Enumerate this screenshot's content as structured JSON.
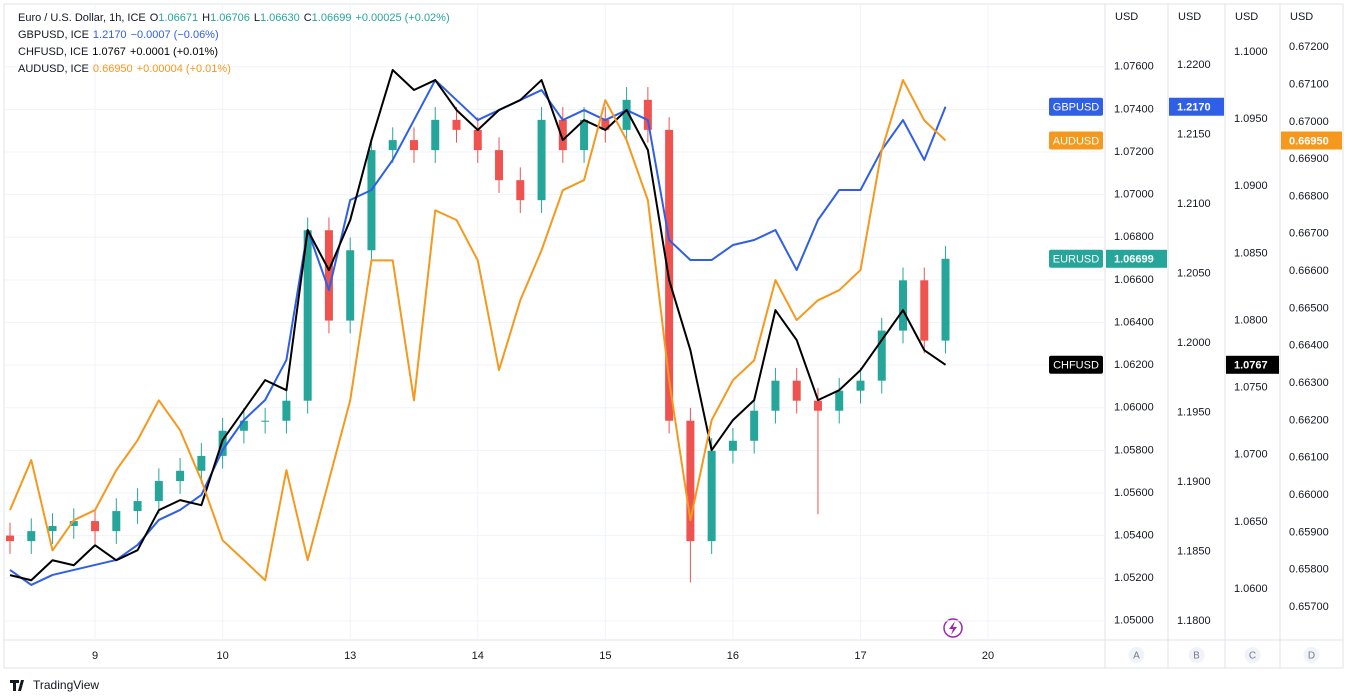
{
  "chart_data": {
    "type": "candlestick",
    "brand": "TradingView",
    "legend": [
      {
        "title": "Euro / U.S. Dollar, 1h, ICE",
        "ohlc": [
          {
            "label": "O",
            "value": "1.06671"
          },
          {
            "label": "H",
            "value": "1.06706"
          },
          {
            "label": "L",
            "value": "1.06630"
          },
          {
            "label": "C",
            "value": "1.06699"
          }
        ],
        "change": "+0.00025 (+0.02%)"
      },
      {
        "title": "GBPUSD, ICE",
        "value": "1.2170",
        "change": "−0.0007 (−0.06%)"
      },
      {
        "title": "CHFUSD, ICE",
        "value": "1.0767",
        "change": "+0.0001 (+0.01%)"
      },
      {
        "title": "AUDUSD, ICE",
        "value": "0.66950",
        "change": "+0.00004 (+0.01%)"
      }
    ],
    "grid": true,
    "xlim": [
      0,
      206
    ],
    "xticks": [
      {
        "value": 16,
        "label": "9"
      },
      {
        "value": 40,
        "label": "10"
      },
      {
        "value": 64,
        "label": "13"
      },
      {
        "value": 88,
        "label": "14"
      },
      {
        "value": 112,
        "label": "15"
      },
      {
        "value": 136,
        "label": "16"
      },
      {
        "value": 160,
        "label": "17"
      },
      {
        "value": 184,
        "label": "20"
      }
    ],
    "x": [
      0,
      4,
      8,
      12,
      16,
      20,
      24,
      28,
      32,
      36,
      40,
      44,
      48,
      52,
      56,
      60,
      64,
      68,
      72,
      76,
      80,
      84,
      88,
      92,
      96,
      100,
      104,
      108,
      112,
      116,
      120,
      124,
      128,
      132,
      136,
      140,
      144,
      148,
      152,
      156,
      160,
      164,
      168,
      172,
      176
    ],
    "axes": [
      {
        "letter": "A",
        "unit": "USD",
        "lim": [
          1.0491,
          1.0789
        ],
        "ticks": [
          {
            "value": 1.05,
            "label": "1.05000"
          },
          {
            "value": 1.052,
            "label": "1.05200"
          },
          {
            "value": 1.054,
            "label": "1.05400"
          },
          {
            "value": 1.056,
            "label": "1.05600"
          },
          {
            "value": 1.058,
            "label": "1.05800"
          },
          {
            "value": 1.06,
            "label": "1.06000"
          },
          {
            "value": 1.062,
            "label": "1.06200"
          },
          {
            "value": 1.064,
            "label": "1.06400"
          },
          {
            "value": 1.066,
            "label": "1.06600"
          },
          {
            "value": 1.068,
            "label": "1.06800"
          },
          {
            "value": 1.07,
            "label": "1.07000"
          },
          {
            "value": 1.072,
            "label": "1.07200"
          },
          {
            "value": 1.074,
            "label": "1.07400"
          },
          {
            "value": 1.076,
            "label": "1.07600"
          }
        ]
      },
      {
        "letter": "B",
        "unit": "USD",
        "lim": [
          1.17863,
          1.22432
        ],
        "ticks": [
          {
            "value": 1.18,
            "label": "1.1800"
          },
          {
            "value": 1.185,
            "label": "1.1850"
          },
          {
            "value": 1.19,
            "label": "1.1900"
          },
          {
            "value": 1.195,
            "label": "1.1950"
          },
          {
            "value": 1.2,
            "label": "1.2000"
          },
          {
            "value": 1.205,
            "label": "1.2050"
          },
          {
            "value": 1.21,
            "label": "1.2100"
          },
          {
            "value": 1.215,
            "label": "1.2150"
          },
          {
            "value": 1.22,
            "label": "1.2200"
          }
        ]
      },
      {
        "letter": "C",
        "unit": "USD",
        "lim": [
          1.0562,
          1.1035
        ],
        "ticks": [
          {
            "value": 1.06,
            "label": "1.0600"
          },
          {
            "value": 1.065,
            "label": "1.0650"
          },
          {
            "value": 1.07,
            "label": "1.0700"
          },
          {
            "value": 1.075,
            "label": "1.0750"
          },
          {
            "value": 1.08,
            "label": "1.0800"
          },
          {
            "value": 1.085,
            "label": "1.0850"
          },
          {
            "value": 1.09,
            "label": "1.0900"
          },
          {
            "value": 1.095,
            "label": "1.0950"
          },
          {
            "value": 1.1,
            "label": "1.1000"
          }
        ]
      },
      {
        "letter": "D",
        "unit": "USD",
        "lim": [
          0.65612,
          0.67313
        ],
        "ticks": [
          {
            "value": 0.657,
            "label": "0.65700"
          },
          {
            "value": 0.658,
            "label": "0.65800"
          },
          {
            "value": 0.659,
            "label": "0.65900"
          },
          {
            "value": 0.66,
            "label": "0.66000"
          },
          {
            "value": 0.661,
            "label": "0.66100"
          },
          {
            "value": 0.662,
            "label": "0.66200"
          },
          {
            "value": 0.663,
            "label": "0.66300"
          },
          {
            "value": 0.664,
            "label": "0.66400"
          },
          {
            "value": 0.665,
            "label": "0.66500"
          },
          {
            "value": 0.666,
            "label": "0.66600"
          },
          {
            "value": 0.667,
            "label": "0.66700"
          },
          {
            "value": 0.668,
            "label": "0.66800"
          },
          {
            "value": 0.669,
            "label": "0.66900"
          },
          {
            "value": 0.67,
            "label": "0.67000"
          },
          {
            "value": 0.671,
            "label": "0.67100"
          },
          {
            "value": 0.672,
            "label": "0.67200"
          }
        ]
      }
    ],
    "candles": {
      "name": "EURUSD",
      "axis": "A",
      "up_color": "#26a69a",
      "down_color": "#ef5350",
      "last_label": "1.06699",
      "open": [
        1.054,
        1.05374,
        1.05421,
        1.05445,
        1.05468,
        1.05421,
        1.05515,
        1.05562,
        1.05656,
        1.05704,
        1.05774,
        1.05892,
        1.05939,
        1.05939,
        1.06033,
        1.06833,
        1.06409,
        1.06739,
        1.07209,
        1.07256,
        1.07209,
        1.07351,
        1.07304,
        1.07209,
        1.07068,
        1.06974,
        1.07351,
        1.07209,
        1.07351,
        1.07304,
        1.07445,
        1.07304,
        1.05939,
        1.05374,
        1.05798,
        1.05845,
        1.05986,
        1.06127,
        1.06033,
        1.05986,
        1.0608,
        1.06127,
        1.06362,
        1.06598,
        1.06315
      ],
      "high": [
        1.0546,
        1.05481,
        1.05505,
        1.05528,
        1.05528,
        1.05575,
        1.05622,
        1.05716,
        1.05764,
        1.05834,
        1.05952,
        1.05999,
        1.05999,
        1.06093,
        1.06893,
        1.06893,
        1.06799,
        1.07269,
        1.07316,
        1.07316,
        1.07411,
        1.07411,
        1.07364,
        1.07269,
        1.07128,
        1.07411,
        1.07411,
        1.07411,
        1.07411,
        1.07505,
        1.07505,
        1.07364,
        1.05999,
        1.05858,
        1.05905,
        1.06046,
        1.06187,
        1.06187,
        1.06093,
        1.0614,
        1.06187,
        1.06422,
        1.06658,
        1.06658,
        1.06759
      ],
      "low": [
        1.05314,
        1.05314,
        1.05361,
        1.05385,
        1.05361,
        1.05361,
        1.05455,
        1.05502,
        1.05596,
        1.05644,
        1.05714,
        1.05832,
        1.05879,
        1.05879,
        1.05973,
        1.06349,
        1.06349,
        1.06679,
        1.07149,
        1.07149,
        1.07149,
        1.07244,
        1.07149,
        1.07008,
        1.06914,
        1.06914,
        1.07149,
        1.07149,
        1.07244,
        1.07244,
        1.07244,
        1.05879,
        1.0518,
        1.05314,
        1.05738,
        1.05785,
        1.05926,
        1.05973,
        1.055,
        1.05926,
        1.0602,
        1.06067,
        1.06302,
        1.06255,
        1.06255
      ],
      "close": [
        1.05374,
        1.05421,
        1.05445,
        1.05468,
        1.05421,
        1.05515,
        1.05562,
        1.05656,
        1.05704,
        1.05774,
        1.05892,
        1.05939,
        1.05939,
        1.06033,
        1.06833,
        1.06409,
        1.06739,
        1.07209,
        1.07256,
        1.07209,
        1.07351,
        1.07304,
        1.07209,
        1.07068,
        1.06974,
        1.07351,
        1.07209,
        1.07351,
        1.07304,
        1.07445,
        1.07304,
        1.05939,
        1.05374,
        1.05798,
        1.05845,
        1.05986,
        1.06127,
        1.06033,
        1.05986,
        1.0608,
        1.06127,
        1.06362,
        1.06598,
        1.06315,
        1.06699
      ]
    },
    "series": [
      {
        "name": "GBPUSD",
        "axis": "B",
        "color": "#2f5fe6",
        "last_label": "1.2170",
        "values": [
          1.18367,
          1.18259,
          1.18331,
          1.18367,
          1.18403,
          1.18439,
          1.18547,
          1.18727,
          1.18799,
          1.18907,
          1.1923,
          1.19446,
          1.1959,
          1.19878,
          1.20813,
          1.20381,
          1.21029,
          1.21101,
          1.21317,
          1.21604,
          1.21892,
          1.21748,
          1.21604,
          1.21676,
          1.21748,
          1.2182,
          1.21604,
          1.21676,
          1.21604,
          1.21676,
          1.21604,
          1.20741,
          1.20597,
          1.20597,
          1.20705,
          1.20741,
          1.20813,
          1.20525,
          1.20885,
          1.21101,
          1.21101,
          1.21389,
          1.21604,
          1.21317,
          1.217
        ]
      },
      {
        "name": "CHFUSD",
        "axis": "C",
        "color": "#000000",
        "last_label": "1.0767",
        "values": [
          1.06103,
          1.06065,
          1.06214,
          1.06177,
          1.06326,
          1.06214,
          1.06289,
          1.06587,
          1.06662,
          1.06624,
          1.07109,
          1.07332,
          1.07556,
          1.07481,
          1.08674,
          1.08375,
          1.08748,
          1.09344,
          1.09866,
          1.09717,
          1.09791,
          1.09568,
          1.09419,
          1.09568,
          1.09642,
          1.09791,
          1.09344,
          1.09493,
          1.09419,
          1.09568,
          1.0927,
          1.08301,
          1.07779,
          1.07034,
          1.07258,
          1.07407,
          1.08077,
          1.07854,
          1.07407,
          1.07481,
          1.0763,
          1.07854,
          1.08077,
          1.07779,
          1.0767
        ]
      },
      {
        "name": "AUDUSD",
        "axis": "D",
        "color": "#f5991e",
        "last_label": "0.66950",
        "values": [
          0.6596,
          0.66094,
          0.65852,
          0.65933,
          0.6596,
          0.66067,
          0.66147,
          0.66254,
          0.66174,
          0.6604,
          0.65879,
          0.65826,
          0.65772,
          0.66067,
          0.65826,
          0.6604,
          0.66254,
          0.66629,
          0.66629,
          0.66254,
          0.66763,
          0.66737,
          0.66629,
          0.66335,
          0.66522,
          0.66656,
          0.66817,
          0.66844,
          0.67058,
          0.66951,
          0.6679,
          0.66308,
          0.65933,
          0.66201,
          0.66308,
          0.66361,
          0.66576,
          0.66469,
          0.66522,
          0.66549,
          0.66603,
          0.66924,
          0.67112,
          0.67004,
          0.6695
        ]
      }
    ]
  }
}
